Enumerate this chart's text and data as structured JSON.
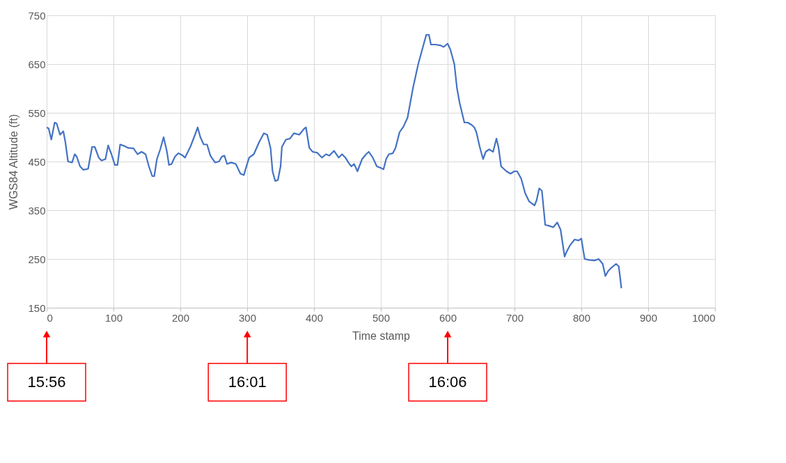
{
  "chart_data": {
    "type": "line",
    "xlabel": "Time stamp",
    "ylabel": "WGS84 Altitude (ft)",
    "xlim": [
      0,
      1000
    ],
    "xticks": [
      0,
      100,
      200,
      300,
      400,
      500,
      600,
      700,
      800,
      900,
      {
        "value": 1000,
        "label": "1000"
      }
    ],
    "ylim": [
      150,
      750
    ],
    "yticks": [
      150,
      250,
      350,
      450,
      550,
      650,
      750
    ],
    "grid": true,
    "line_style": "solid",
    "marker": "none",
    "series": [
      {
        "color": "#4472c4",
        "x": [
          0,
          3,
          7,
          12,
          15,
          20,
          25,
          28,
          32,
          38,
          42,
          45,
          50,
          55,
          62,
          68,
          72,
          78,
          82,
          88,
          92,
          97,
          102,
          106,
          110,
          116,
          122,
          130,
          136,
          142,
          148,
          153,
          158,
          161,
          165,
          170,
          175,
          180,
          183,
          187,
          192,
          197,
          203,
          207,
          215,
          222,
          226,
          230,
          235,
          240,
          245,
          252,
          258,
          262,
          266,
          270,
          276,
          283,
          290,
          295,
          300,
          303,
          310,
          318,
          325,
          330,
          335,
          338,
          342,
          346,
          350,
          352,
          358,
          364,
          370,
          378,
          385,
          388,
          393,
          398,
          405,
          412,
          418,
          423,
          430,
          437,
          442,
          447,
          452,
          456,
          460,
          465,
          472,
          478,
          482,
          488,
          494,
          500,
          504,
          508,
          512,
          518,
          522,
          528,
          534,
          540,
          548,
          556,
          562,
          568,
          572,
          575,
          582,
          590,
          594,
          600,
          604,
          610,
          614,
          618,
          625,
          630,
          636,
          640,
          643,
          648,
          653,
          657,
          662,
          668,
          673,
          676,
          680,
          688,
          694,
          700,
          704,
          710,
          716,
          722,
          730,
          733,
          737,
          741,
          746,
          752,
          758,
          764,
          769,
          775,
          778,
          783,
          790,
          796,
          800,
          805,
          812,
          820,
          826,
          832,
          836,
          840,
          845,
          852,
          856,
          860
        ],
        "values": [
          520,
          518,
          495,
          530,
          528,
          505,
          512,
          490,
          450,
          448,
          465,
          460,
          440,
          433,
          435,
          480,
          480,
          458,
          452,
          455,
          483,
          465,
          443,
          443,
          485,
          482,
          478,
          477,
          465,
          470,
          465,
          440,
          420,
          420,
          455,
          475,
          500,
          470,
          443,
          445,
          460,
          467,
          463,
          458,
          480,
          505,
          520,
          500,
          485,
          485,
          462,
          448,
          450,
          460,
          462,
          445,
          448,
          445,
          425,
          422,
          445,
          458,
          465,
          490,
          508,
          505,
          478,
          430,
          410,
          412,
          440,
          480,
          495,
          497,
          508,
          505,
          517,
          520,
          478,
          470,
          468,
          458,
          465,
          462,
          472,
          458,
          465,
          458,
          447,
          440,
          445,
          430,
          455,
          465,
          470,
          458,
          440,
          437,
          434,
          455,
          465,
          467,
          478,
          510,
          522,
          540,
          600,
          650,
          680,
          710,
          710,
          690,
          690,
          688,
          685,
          692,
          680,
          650,
          600,
          570,
          530,
          530,
          525,
          520,
          510,
          480,
          455,
          470,
          475,
          470,
          497,
          480,
          440,
          430,
          425,
          430,
          430,
          415,
          385,
          368,
          360,
          370,
          395,
          390,
          320,
          318,
          315,
          325,
          310,
          255,
          265,
          278,
          290,
          288,
          292,
          250,
          248,
          247,
          250,
          240,
          215,
          225,
          232,
          240,
          235,
          190
        ]
      }
    ],
    "x2lim": [
      15.9333,
      16.2111
    ],
    "x2ticks": [
      {
        "value": 15.9333,
        "label": "15:56"
      },
      {
        "value": 16.0167,
        "label": "16:01"
      },
      {
        "value": 16.1,
        "label": "16:06"
      }
    ]
  }
}
